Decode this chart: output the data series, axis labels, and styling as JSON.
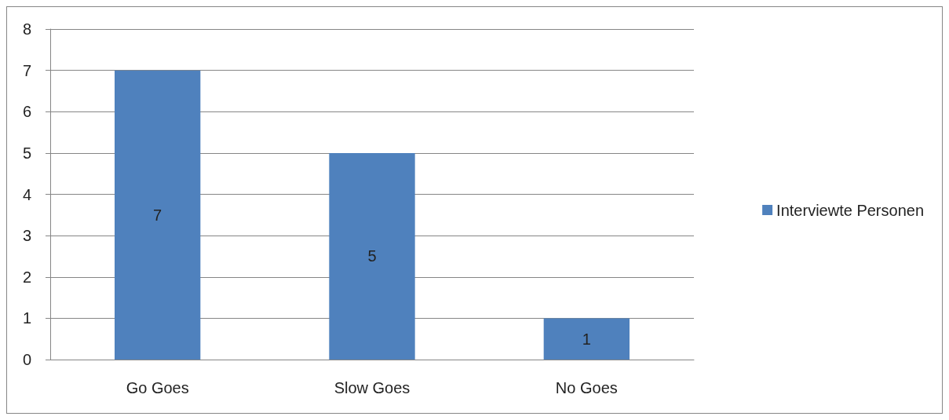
{
  "chart_data": {
    "type": "bar",
    "categories": [
      "Go Goes",
      "Slow Goes",
      "No Goes"
    ],
    "series": [
      {
        "name": "Interviewte Personen",
        "color": "#4f81bd",
        "values": [
          7,
          5,
          1
        ]
      }
    ],
    "ylim": [
      0,
      8
    ],
    "yticks": [
      0,
      1,
      2,
      3,
      4,
      5,
      6,
      7,
      8
    ],
    "grid": "y",
    "legend": "right",
    "data_labels": true
  }
}
